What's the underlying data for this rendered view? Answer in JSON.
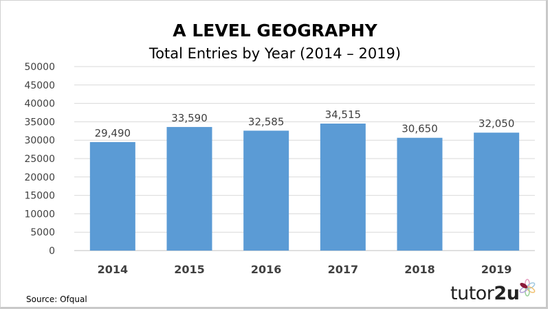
{
  "chart_data": {
    "type": "bar",
    "title": "A LEVEL GEOGRAPHY",
    "subtitle": "Total Entries by Year (2014 – 2019)",
    "categories": [
      "2014",
      "2015",
      "2016",
      "2017",
      "2018",
      "2019"
    ],
    "values": [
      29490,
      33590,
      32585,
      34515,
      30650,
      32050
    ],
    "data_labels": [
      "29,490",
      "33,590",
      "32,585",
      "34,515",
      "30,650",
      "32,050"
    ],
    "ylim": [
      0,
      50000
    ],
    "yticks": [
      "0",
      "5000",
      "10000",
      "15000",
      "20000",
      "25000",
      "30000",
      "35000",
      "40000",
      "45000",
      "50000"
    ],
    "grid": true,
    "bar_color": "#5b9bd5"
  },
  "source": "Source: Ofqual",
  "logo": {
    "text_a": "tutor",
    "text_b": "2u"
  }
}
